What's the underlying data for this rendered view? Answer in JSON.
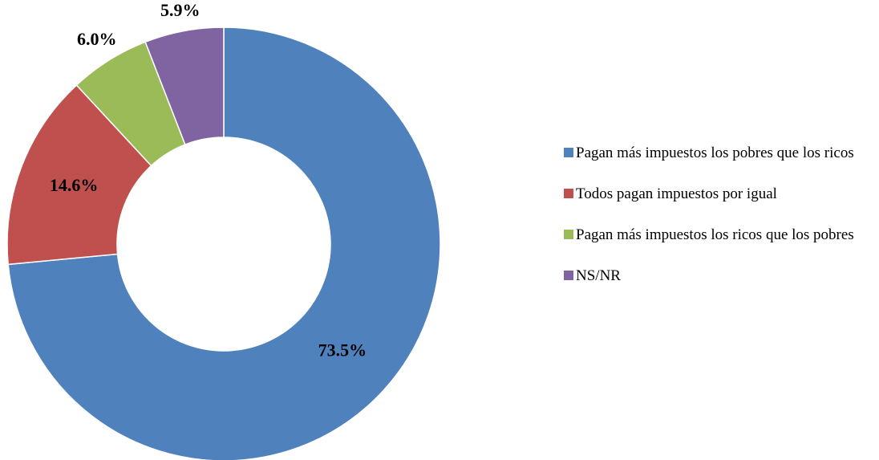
{
  "chart_data": {
    "type": "donut",
    "categories": [
      "Pagan más impuestos los pobres que los ricos",
      "Todos pagan impuestos por igual",
      "Pagan más impuestos los ricos que los pobres",
      "NS/NR"
    ],
    "values": [
      73.5,
      14.6,
      6.0,
      5.9
    ],
    "value_labels": [
      "73.5%",
      "14.6%",
      "6.0%",
      "5.9%"
    ],
    "colors": [
      "#4f81bd",
      "#c0504d",
      "#9bbb59",
      "#8064a2"
    ],
    "legend": "right"
  }
}
